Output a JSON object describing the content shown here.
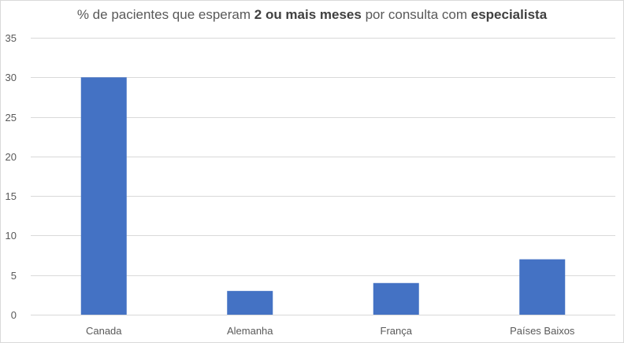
{
  "chart_data": {
    "type": "bar",
    "title_parts": [
      {
        "text": "% de pacientes que esperam ",
        "bold": false
      },
      {
        "text": "2 ou mais meses",
        "bold": true
      },
      {
        "text": " por consulta com ",
        "bold": false
      },
      {
        "text": "especialista",
        "bold": true
      }
    ],
    "categories": [
      "Canada",
      "Alemanha",
      "França",
      "Países Baixos"
    ],
    "values": [
      30,
      3,
      4,
      7
    ],
    "ylim": [
      0,
      35
    ],
    "yticks": [
      "0",
      "5",
      "10",
      "15",
      "20",
      "25",
      "30",
      "35"
    ],
    "ytick_values": [
      0,
      5,
      10,
      15,
      20,
      25,
      30,
      35
    ],
    "grid": true,
    "bar_color": "#4472c4",
    "grid_color": "#d9d9d9"
  }
}
